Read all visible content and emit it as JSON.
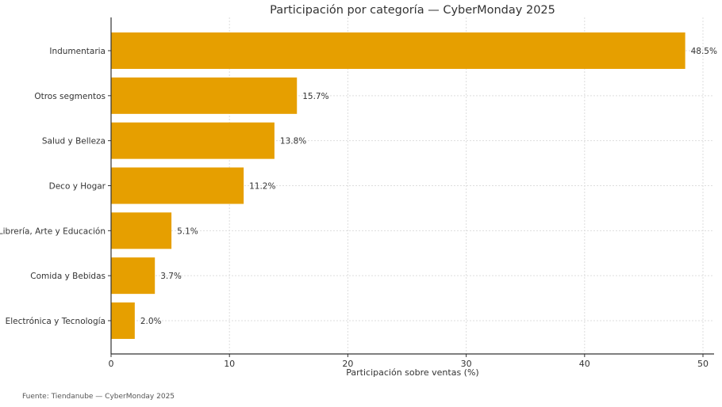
{
  "chart_data": {
    "type": "bar",
    "orientation": "horizontal",
    "title": "Participación por categoría — CyberMonday 2025",
    "xlabel": "Participación sobre ventas (%)",
    "ylabel": "",
    "categories": [
      "Indumentaria",
      "Otros segmentos",
      "Salud y Belleza",
      "Deco y Hogar",
      "Librería, Arte y Educación",
      "Comida y Bebidas",
      "Electrónica y Tecnología"
    ],
    "values": [
      48.5,
      15.7,
      13.8,
      11.2,
      5.1,
      3.7,
      2.0
    ],
    "data_labels": [
      "48.5%",
      "15.7%",
      "13.8%",
      "11.2%",
      "5.1%",
      "3.7%",
      "2.0%"
    ],
    "xlim": [
      0,
      50.9
    ],
    "xticks": [
      "0",
      "10",
      "20",
      "30",
      "40",
      "50"
    ],
    "grid": true,
    "bar_color": "#E69F00",
    "footnote": "Fuente: Tiendanube — CyberMonday 2025"
  }
}
